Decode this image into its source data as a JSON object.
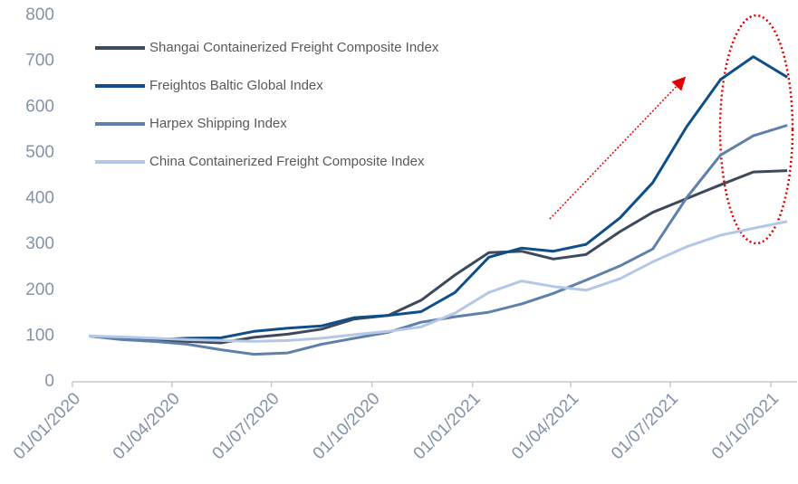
{
  "chart_data": {
    "type": "line",
    "x": [
      "2020-01-16",
      "2020-02-15",
      "2020-03-16",
      "2020-04-15",
      "2020-05-16",
      "2020-06-15",
      "2020-07-16",
      "2020-08-16",
      "2020-09-15",
      "2020-10-16",
      "2020-11-15",
      "2020-12-16",
      "2021-01-16",
      "2021-02-15",
      "2021-03-16",
      "2021-04-15",
      "2021-05-16",
      "2021-06-15",
      "2021-07-16",
      "2021-08-16",
      "2021-09-15",
      "2021-10-16"
    ],
    "series": [
      {
        "name": "Shangai Containerized Freight Composite Index",
        "color": "#3d4a5c",
        "values": [
          100,
          93,
          88,
          88,
          85,
          97,
          104,
          115,
          137,
          145,
          178,
          233,
          282,
          285,
          268,
          278,
          328,
          370,
          400,
          430,
          458,
          461
        ]
      },
      {
        "name": "Freightos Baltic Global Index",
        "color": "#0e4f8a",
        "values": [
          100,
          95,
          92,
          95,
          96,
          110,
          117,
          122,
          140,
          145,
          153,
          195,
          272,
          292,
          285,
          300,
          358,
          435,
          557,
          660,
          710,
          665
        ]
      },
      {
        "name": "Harpex Shipping Index",
        "color": "#5f80a9",
        "values": [
          100,
          92,
          88,
          82,
          70,
          60,
          63,
          82,
          95,
          108,
          130,
          142,
          152,
          170,
          193,
          222,
          253,
          290,
          402,
          495,
          537,
          560
        ]
      },
      {
        "name": "China Containerized Freight Composite Index",
        "color": "#b5c7e6",
        "values": [
          100,
          98,
          95,
          92,
          90,
          88,
          90,
          95,
          103,
          110,
          120,
          150,
          195,
          220,
          208,
          200,
          225,
          262,
          295,
          320,
          335,
          350
        ]
      }
    ],
    "xlim": [
      "2020-01-01",
      "2021-10-25"
    ],
    "xticks": [
      {
        "value": "2020-01-01",
        "label": "01/01/2020"
      },
      {
        "value": "2020-04-01",
        "label": "01/04/2020"
      },
      {
        "value": "2020-07-01",
        "label": "01/07/2020"
      },
      {
        "value": "2020-10-01",
        "label": "01/10/2020"
      },
      {
        "value": "2021-01-01",
        "label": "01/01/2021"
      },
      {
        "value": "2021-04-01",
        "label": "01/04/2021"
      },
      {
        "value": "2021-07-01",
        "label": "01/07/2021"
      },
      {
        "value": "2021-10-01",
        "label": "01/10/2021"
      }
    ],
    "ylim": [
      0,
      800
    ],
    "yticks": [
      0,
      100,
      200,
      300,
      400,
      500,
      600,
      700,
      800
    ],
    "grid": false
  }
}
